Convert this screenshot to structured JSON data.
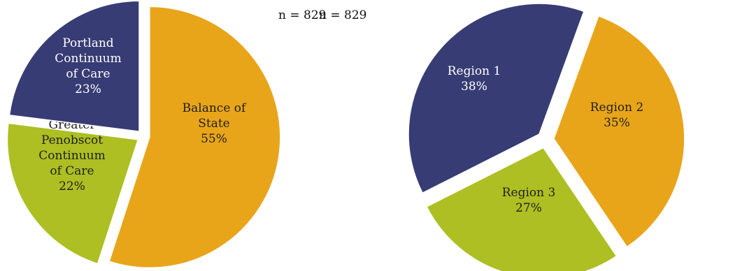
{
  "chart_data": [
    {
      "type": "pie",
      "annotation": "n = 829",
      "slices": [
        {
          "label_lines": [
            "Balance of",
            "State"
          ],
          "value": 55,
          "value_label": "55%",
          "color": "#E8A51A",
          "label_color": "#1f1f1f"
        },
        {
          "label_lines": [
            "Greater",
            "Penobscot",
            "Continuum",
            "of Care"
          ],
          "value": 22,
          "value_label": "22%",
          "color": "#ADBF22",
          "label_color": "#1f1f1f"
        },
        {
          "label_lines": [
            "Portland",
            "Continuum",
            "of Care"
          ],
          "value": 23,
          "value_label": "23%",
          "color": "#373C74",
          "label_color": "#ffffff"
        }
      ]
    },
    {
      "type": "pie",
      "annotation": "n = 829",
      "slices": [
        {
          "label_lines": [
            "Region 2"
          ],
          "value": 35,
          "value_label": "35%",
          "color": "#E8A51A",
          "label_color": "#1f1f1f"
        },
        {
          "label_lines": [
            "Region 3"
          ],
          "value": 27,
          "value_label": "27%",
          "color": "#ADBF22",
          "label_color": "#1f1f1f"
        },
        {
          "label_lines": [
            "Region 1"
          ],
          "value": 38,
          "value_label": "38%",
          "color": "#373C74",
          "label_color": "#ffffff"
        }
      ]
    }
  ]
}
